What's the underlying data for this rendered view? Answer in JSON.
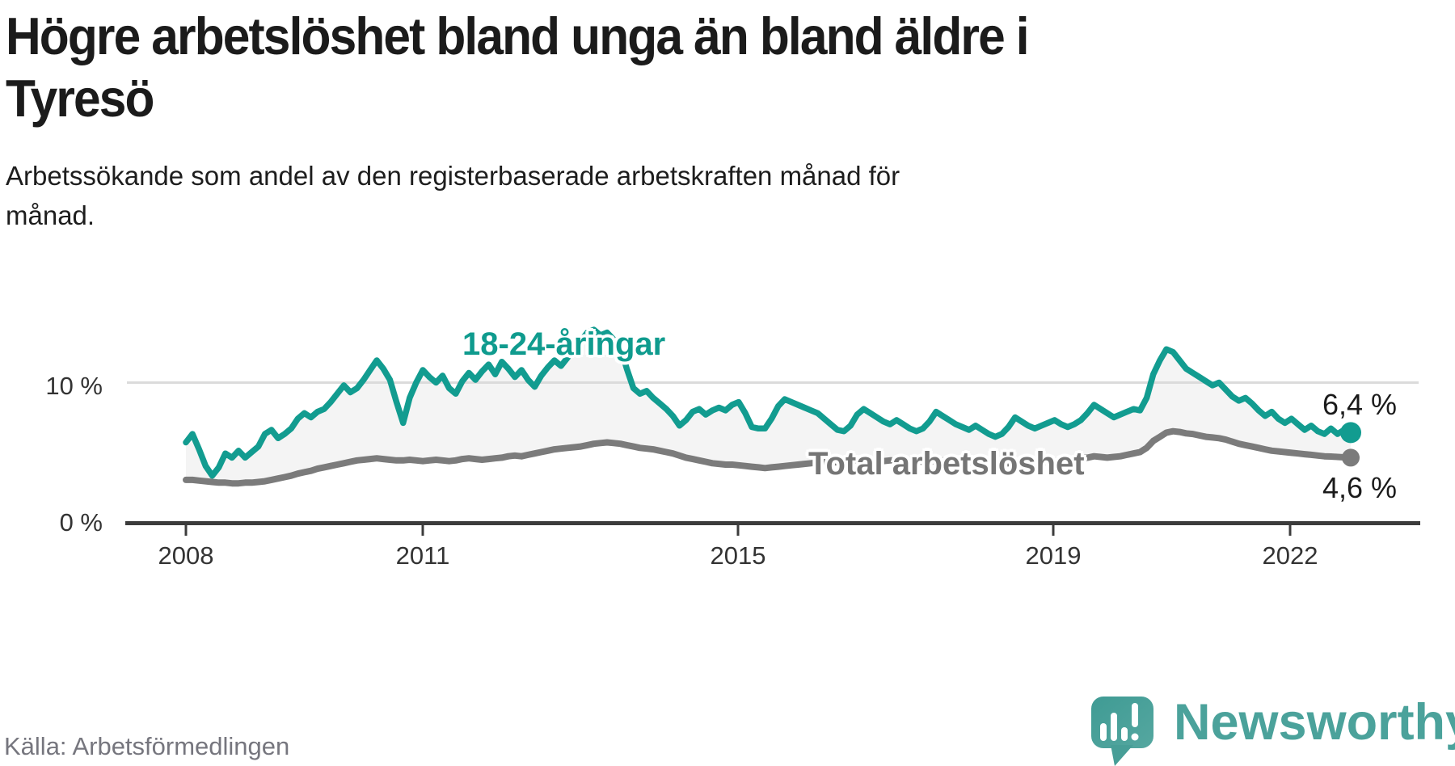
{
  "header": {
    "title_lines": [
      "Högre arbetslöshet bland unga än bland äldre i",
      "Tyresö"
    ],
    "subtitle_lines": [
      "Arbetssökande som andel av den registerbaserade arbetskraften månad för",
      "månad."
    ]
  },
  "chart_data": {
    "type": "line",
    "title": "Högre arbetslöshet bland unga än bland äldre i Tyresö",
    "subtitle": "Arbetssökande som andel av den registerbaserade arbetskraften månad för månad.",
    "x_unit": "month",
    "x_start": "2008-01",
    "x_end": "2022-10",
    "x_ticks": [
      "2008",
      "2011",
      "2015",
      "2019",
      "2022"
    ],
    "y_ticks": [
      "10 %",
      "0 %"
    ],
    "ylim": [
      0,
      14
    ],
    "grid": "single horizontal gridline at 10 %",
    "area_between_series_fill": "#f4f4f4",
    "gridline_color": "#dbdbdb",
    "axis_color": "#3c3c3c",
    "series": [
      {
        "name": "18-24-åringar",
        "color": "#129c90",
        "end_label": "6,4 %",
        "end_value": 6.4,
        "values": [
          5.7,
          6.3,
          5.2,
          4.0,
          3.3,
          3.9,
          4.9,
          4.6,
          5.1,
          4.6,
          5.0,
          5.4,
          6.3,
          6.6,
          6.0,
          6.3,
          6.7,
          7.4,
          7.8,
          7.5,
          7.9,
          8.1,
          8.6,
          9.2,
          9.8,
          9.3,
          9.6,
          10.2,
          10.9,
          11.6,
          11.0,
          10.2,
          8.6,
          7.1,
          8.9,
          10.0,
          10.9,
          10.4,
          10.0,
          10.5,
          9.6,
          9.2,
          10.1,
          10.7,
          10.2,
          10.8,
          11.3,
          10.6,
          11.5,
          11.0,
          10.4,
          10.9,
          10.2,
          9.7,
          10.5,
          11.1,
          11.6,
          11.2,
          11.8,
          12.4,
          13.0,
          13.6,
          13.8,
          13.4,
          13.6,
          13.1,
          12.6,
          11.0,
          9.6,
          9.2,
          9.4,
          8.9,
          8.5,
          8.1,
          7.6,
          6.9,
          7.3,
          7.9,
          8.1,
          7.7,
          8.0,
          8.2,
          8.0,
          8.4,
          8.6,
          7.8,
          6.8,
          6.7,
          6.7,
          7.4,
          8.3,
          8.8,
          8.6,
          8.4,
          8.2,
          8.0,
          7.8,
          7.4,
          7.0,
          6.6,
          6.5,
          6.9,
          7.7,
          8.1,
          7.8,
          7.5,
          7.2,
          7.0,
          7.3,
          7.0,
          6.7,
          6.5,
          6.7,
          7.2,
          7.9,
          7.6,
          7.3,
          7.0,
          6.8,
          6.6,
          6.9,
          6.6,
          6.3,
          6.1,
          6.3,
          6.8,
          7.5,
          7.2,
          6.9,
          6.7,
          6.9,
          7.1,
          7.3,
          7.0,
          6.8,
          7.0,
          7.3,
          7.8,
          8.4,
          8.1,
          7.8,
          7.5,
          7.7,
          7.9,
          8.1,
          8.0,
          8.9,
          10.6,
          11.6,
          12.4,
          12.2,
          11.6,
          11.0,
          10.7,
          10.4,
          10.1,
          9.8,
          10.0,
          9.5,
          9.0,
          8.7,
          8.9,
          8.5,
          8.0,
          7.6,
          7.9,
          7.4,
          7.1,
          7.4,
          7.0,
          6.6,
          6.9,
          6.5,
          6.3,
          6.7,
          6.3,
          6.6,
          6.4
        ]
      },
      {
        "name": "Total arbetslöshet",
        "color": "#7b7b7b",
        "end_label": "4,6 %",
        "end_value": 4.6,
        "values": [
          3.0,
          3.0,
          2.95,
          2.9,
          2.85,
          2.8,
          2.8,
          2.75,
          2.75,
          2.8,
          2.8,
          2.85,
          2.9,
          3.0,
          3.1,
          3.2,
          3.3,
          3.45,
          3.55,
          3.65,
          3.8,
          3.9,
          4.0,
          4.1,
          4.2,
          4.3,
          4.4,
          4.45,
          4.5,
          4.55,
          4.5,
          4.45,
          4.4,
          4.4,
          4.45,
          4.4,
          4.35,
          4.4,
          4.45,
          4.4,
          4.35,
          4.4,
          4.5,
          4.55,
          4.5,
          4.45,
          4.5,
          4.55,
          4.6,
          4.7,
          4.75,
          4.7,
          4.8,
          4.9,
          5.0,
          5.1,
          5.2,
          5.25,
          5.3,
          5.35,
          5.4,
          5.5,
          5.6,
          5.65,
          5.7,
          5.65,
          5.6,
          5.5,
          5.4,
          5.3,
          5.25,
          5.2,
          5.1,
          5.0,
          4.9,
          4.75,
          4.6,
          4.5,
          4.4,
          4.3,
          4.2,
          4.15,
          4.1,
          4.1,
          4.05,
          4.0,
          3.95,
          3.9,
          3.85,
          3.9,
          3.95,
          4.0,
          4.05,
          4.1,
          4.15,
          4.2,
          4.25,
          4.3,
          4.3,
          4.25,
          4.2,
          4.2,
          4.25,
          4.3,
          4.3,
          4.35,
          4.35,
          4.4,
          4.4,
          4.45,
          4.4,
          4.35,
          4.3,
          4.3,
          4.35,
          4.4,
          4.35,
          4.3,
          4.3,
          4.25,
          4.3,
          4.3,
          4.25,
          4.2,
          4.15,
          4.2,
          4.25,
          4.2,
          4.15,
          4.2,
          4.25,
          4.3,
          4.35,
          4.4,
          4.45,
          4.5,
          4.55,
          4.6,
          4.7,
          4.65,
          4.6,
          4.65,
          4.7,
          4.8,
          4.9,
          5.0,
          5.3,
          5.8,
          6.1,
          6.4,
          6.5,
          6.45,
          6.35,
          6.3,
          6.2,
          6.1,
          6.05,
          6.0,
          5.9,
          5.75,
          5.6,
          5.5,
          5.4,
          5.3,
          5.2,
          5.1,
          5.05,
          5.0,
          4.95,
          4.9,
          4.85,
          4.8,
          4.75,
          4.7,
          4.68,
          4.65,
          4.62,
          4.6
        ]
      }
    ]
  },
  "footer": {
    "source": "Källa: Arbetsförmedlingen",
    "logo_text": "Newsworthy"
  }
}
